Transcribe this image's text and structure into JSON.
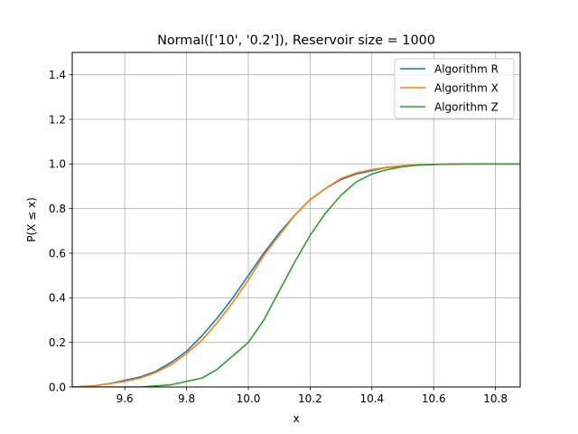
{
  "chart_data": {
    "type": "line",
    "title": "Normal(['10', '0.2']), Reservoir size = 1000",
    "xlabel": "x",
    "ylabel": "P(X ≤ x)",
    "xlim": [
      9.43,
      10.88
    ],
    "ylim": [
      0.0,
      1.5
    ],
    "xticks": [
      9.6,
      9.8,
      10.0,
      10.2,
      10.4,
      10.6,
      10.8
    ],
    "yticks": [
      0.0,
      0.2,
      0.4,
      0.6,
      0.8,
      1.0,
      1.2,
      1.4
    ],
    "grid": true,
    "legend_position": "top-right",
    "series": [
      {
        "name": "Algorithm R",
        "color": "#1f77b4",
        "x": [
          9.43,
          9.5,
          9.55,
          9.6,
          9.65,
          9.7,
          9.75,
          9.8,
          9.85,
          9.9,
          9.95,
          10.0,
          10.05,
          10.1,
          10.15,
          10.2,
          10.25,
          10.3,
          10.35,
          10.4,
          10.45,
          10.5,
          10.55,
          10.6,
          10.65,
          10.7,
          10.88
        ],
        "y": [
          0.0,
          0.005,
          0.015,
          0.03,
          0.045,
          0.07,
          0.11,
          0.16,
          0.23,
          0.31,
          0.4,
          0.5,
          0.6,
          0.69,
          0.77,
          0.84,
          0.89,
          0.93,
          0.955,
          0.97,
          0.985,
          0.99,
          0.995,
          0.998,
          0.999,
          1.0,
          1.0
        ]
      },
      {
        "name": "Algorithm X",
        "color": "#ff7f0e",
        "x": [
          9.43,
          9.5,
          9.55,
          9.6,
          9.65,
          9.7,
          9.75,
          9.8,
          9.85,
          9.9,
          9.95,
          10.0,
          10.05,
          10.1,
          10.15,
          10.2,
          10.25,
          10.3,
          10.35,
          10.4,
          10.45,
          10.5,
          10.55,
          10.6,
          10.65,
          10.7,
          10.88
        ],
        "y": [
          0.0,
          0.005,
          0.015,
          0.025,
          0.04,
          0.065,
          0.1,
          0.15,
          0.21,
          0.29,
          0.38,
          0.48,
          0.59,
          0.68,
          0.77,
          0.84,
          0.89,
          0.935,
          0.96,
          0.975,
          0.985,
          0.992,
          0.996,
          0.998,
          0.999,
          1.0,
          1.0
        ]
      },
      {
        "name": "Algorithm Z",
        "color": "#2ca02c",
        "x": [
          9.43,
          9.65,
          9.7,
          9.75,
          9.8,
          9.85,
          9.9,
          9.95,
          10.0,
          10.05,
          10.1,
          10.15,
          10.2,
          10.25,
          10.3,
          10.35,
          10.4,
          10.45,
          10.5,
          10.55,
          10.6,
          10.7,
          10.88
        ],
        "y": [
          0.0,
          0.0,
          0.005,
          0.01,
          0.025,
          0.04,
          0.08,
          0.14,
          0.2,
          0.3,
          0.43,
          0.56,
          0.68,
          0.78,
          0.86,
          0.92,
          0.955,
          0.975,
          0.988,
          0.995,
          0.998,
          1.0,
          1.0
        ]
      }
    ]
  }
}
